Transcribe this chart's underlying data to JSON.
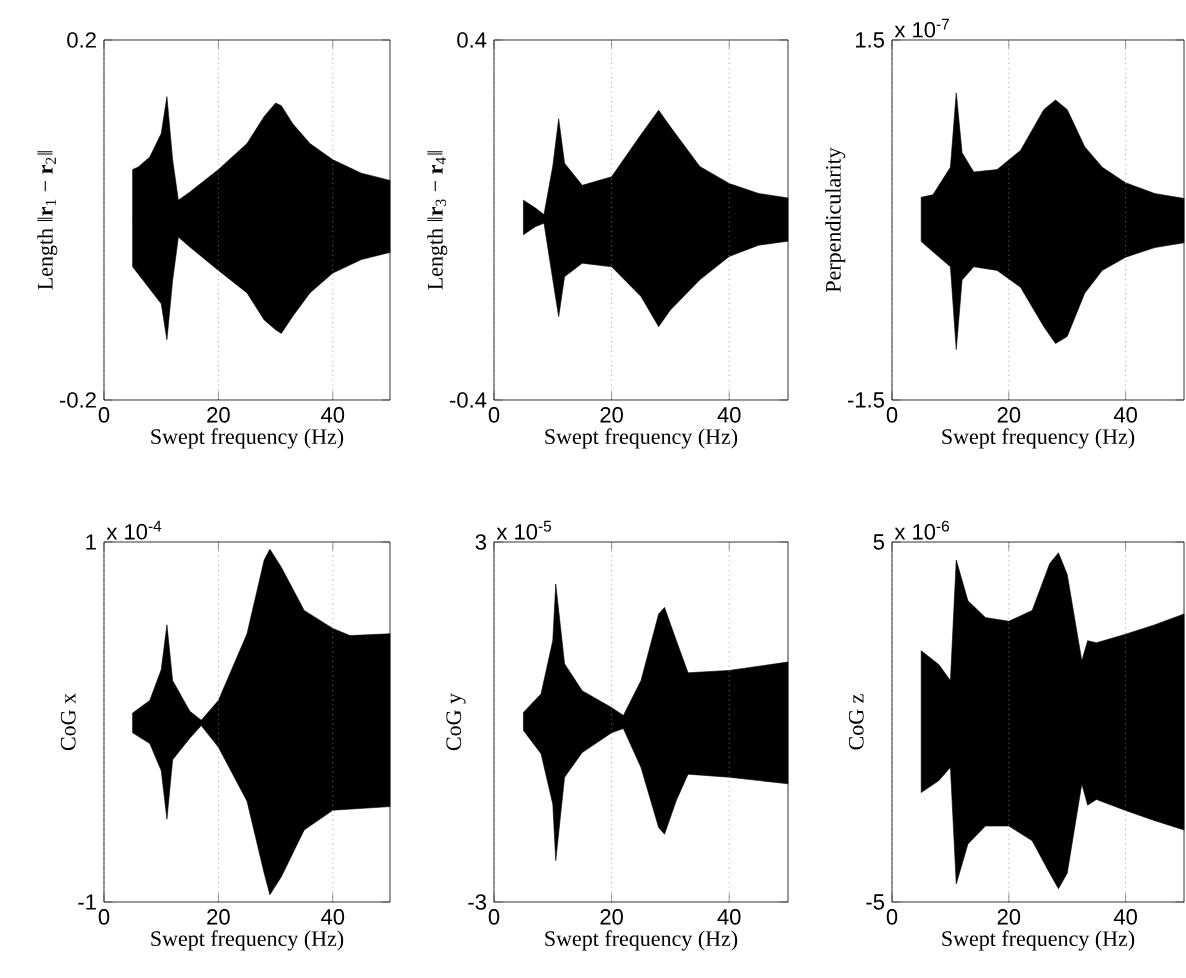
{
  "chart_data": [
    {
      "type": "area",
      "xlim": [
        0,
        50
      ],
      "xticks": [
        0,
        20,
        40
      ],
      "ylim": [
        -0.2,
        0.2
      ],
      "yticks": [
        -0.2,
        0.2
      ],
      "grid": "x",
      "xlabel": "Swept frequency (Hz)",
      "ylabel": "Length ‖**r**$_{1}$ − **r**$_{2}$‖",
      "series": [
        {
          "color": "#000000",
          "x": [
            5,
            6,
            8,
            10,
            11,
            12,
            13,
            15,
            20,
            25,
            28,
            30,
            31,
            33,
            36,
            40,
            45,
            50
          ],
          "values": [
            0.056,
            0.059,
            0.07,
            0.096,
            0.137,
            0.067,
            0.022,
            0.031,
            0.056,
            0.085,
            0.115,
            0.13,
            0.127,
            0.107,
            0.085,
            0.067,
            0.052,
            0.044
          ]
        },
        {
          "color": "#000000",
          "x": [
            5,
            10,
            11,
            12,
            13,
            15,
            20,
            25,
            28,
            30,
            31,
            33,
            36,
            40,
            45,
            50
          ],
          "values": [
            -0.052,
            -0.093,
            -0.133,
            -0.067,
            -0.019,
            -0.03,
            -0.056,
            -0.081,
            -0.111,
            -0.122,
            -0.126,
            -0.107,
            -0.081,
            -0.059,
            -0.044,
            -0.036
          ]
        }
      ]
    },
    {
      "type": "area",
      "xlim": [
        0,
        50
      ],
      "xticks": [
        0,
        20,
        40
      ],
      "ylim": [
        -0.4,
        0.4
      ],
      "yticks": [
        -0.4,
        0.4
      ],
      "grid": "x",
      "xlabel": "Swept frequency (Hz)",
      "ylabel": "Length ‖**r**$_{3}$ − **r**$_{4}$‖",
      "series": [
        {
          "color": "#000000",
          "x": [
            5,
            7,
            8.5,
            10,
            11,
            12,
            15,
            20,
            25,
            28,
            30,
            35,
            40,
            45,
            50
          ],
          "values": [
            0.044,
            0.027,
            0.012,
            0.12,
            0.225,
            0.126,
            0.077,
            0.096,
            0.19,
            0.244,
            0.207,
            0.119,
            0.081,
            0.059,
            0.049
          ]
        },
        {
          "color": "#000000",
          "x": [
            5,
            7,
            8.5,
            10,
            11,
            12,
            15,
            20,
            25,
            28,
            30,
            35,
            40,
            45,
            50
          ],
          "values": [
            -0.033,
            -0.015,
            -0.007,
            -0.133,
            -0.215,
            -0.126,
            -0.096,
            -0.104,
            -0.17,
            -0.237,
            -0.2,
            -0.133,
            -0.081,
            -0.056,
            -0.047
          ]
        }
      ]
    },
    {
      "type": "area",
      "xlim": [
        0,
        50
      ],
      "xticks": [
        0,
        20,
        40
      ],
      "ylim": [
        -1.5,
        1.5
      ],
      "yticks": [
        -1.5,
        1.5
      ],
      "grid": "x",
      "xlabel": "Swept frequency (Hz)",
      "ylabel": "Perpendicularity",
      "annotations": [
        "x 10$^{-7}$"
      ],
      "series": [
        {
          "color": "#000000",
          "x": [
            5,
            7,
            10,
            11,
            12,
            14,
            18,
            22,
            26,
            28,
            30,
            33,
            36,
            40,
            45,
            50
          ],
          "values": [
            0.19,
            0.21,
            0.44,
            1.06,
            0.56,
            0.4,
            0.42,
            0.58,
            0.92,
            1.0,
            0.92,
            0.61,
            0.44,
            0.31,
            0.22,
            0.18
          ]
        },
        {
          "color": "#000000",
          "x": [
            5,
            10,
            11,
            12,
            14,
            18,
            22,
            26,
            28,
            30,
            33,
            36,
            40,
            45,
            50
          ],
          "values": [
            -0.18,
            -0.39,
            -1.08,
            -0.5,
            -0.39,
            -0.42,
            -0.56,
            -0.89,
            -1.03,
            -0.97,
            -0.61,
            -0.42,
            -0.31,
            -0.23,
            -0.19
          ]
        }
      ]
    },
    {
      "type": "area",
      "xlim": [
        0,
        50
      ],
      "xticks": [
        0,
        20,
        40
      ],
      "ylim": [
        -1,
        1
      ],
      "yticks": [
        -1,
        1
      ],
      "grid": "x",
      "xlabel": "Swept frequency (Hz)",
      "ylabel": "CoG x",
      "annotations": [
        "x 10$^{-4}$"
      ],
      "series": [
        {
          "color": "#000000",
          "x": [
            5,
            8,
            10,
            11,
            12,
            15,
            17,
            20,
            25,
            28,
            29,
            31,
            35,
            40,
            43,
            50
          ],
          "values": [
            0.05,
            0.12,
            0.29,
            0.54,
            0.23,
            0.06,
            0.01,
            0.12,
            0.49,
            0.9,
            0.96,
            0.86,
            0.62,
            0.52,
            0.48,
            0.49
          ]
        },
        {
          "color": "#000000",
          "x": [
            5,
            8,
            10,
            11,
            12,
            15,
            17,
            20,
            25,
            28,
            29,
            31,
            35,
            40,
            50
          ],
          "values": [
            -0.06,
            -0.12,
            -0.27,
            -0.54,
            -0.21,
            -0.09,
            -0.02,
            -0.14,
            -0.44,
            -0.84,
            -0.96,
            -0.86,
            -0.6,
            -0.49,
            -0.47
          ]
        }
      ]
    },
    {
      "type": "area",
      "xlim": [
        0,
        50
      ],
      "xticks": [
        0,
        20,
        40
      ],
      "ylim": [
        -3,
        3
      ],
      "yticks": [
        -3,
        3
      ],
      "grid": "x",
      "xlabel": "Swept frequency (Hz)",
      "ylabel": "CoG y",
      "annotations": [
        "x 10$^{-5}$"
      ],
      "series": [
        {
          "color": "#000000",
          "x": [
            5,
            8,
            10,
            10.5,
            12,
            15,
            20,
            22,
            25,
            28,
            29,
            31,
            33,
            40,
            50
          ],
          "values": [
            0.16,
            0.47,
            1.36,
            2.3,
            0.97,
            0.52,
            0.24,
            0.11,
            0.69,
            1.8,
            1.91,
            1.36,
            0.82,
            0.86,
            1.0
          ]
        },
        {
          "color": "#000000",
          "x": [
            5,
            8,
            10,
            10.5,
            12,
            15,
            20,
            22,
            25,
            28,
            29,
            31,
            33,
            40,
            50
          ],
          "values": [
            -0.14,
            -0.53,
            -1.37,
            -2.31,
            -0.92,
            -0.51,
            -0.18,
            -0.11,
            -0.76,
            -1.76,
            -1.87,
            -1.31,
            -0.87,
            -0.92,
            -1.03
          ]
        }
      ]
    },
    {
      "type": "area",
      "xlim": [
        0,
        50
      ],
      "xticks": [
        0,
        20,
        40
      ],
      "ylim": [
        -5,
        5
      ],
      "yticks": [
        -5,
        5
      ],
      "grid": "x",
      "xlabel": "Swept frequency (Hz)",
      "ylabel": "CoG z",
      "annotations": [
        "x 10$^{-6}$"
      ],
      "series": [
        {
          "color": "#000000",
          "x": [
            5,
            8,
            10,
            11,
            13,
            16,
            20,
            24,
            27,
            28.5,
            30,
            32.5,
            33.5,
            35,
            40,
            45,
            50
          ],
          "values": [
            1.98,
            1.6,
            1.15,
            4.5,
            3.37,
            2.9,
            2.8,
            3.1,
            4.4,
            4.7,
            4.1,
            1.7,
            2.26,
            2.2,
            2.44,
            2.7,
            3.0
          ]
        },
        {
          "color": "#000000",
          "x": [
            5,
            8,
            10,
            11,
            13,
            16,
            20,
            24,
            27,
            28.5,
            30,
            32.5,
            33.5,
            35,
            40,
            45,
            50
          ],
          "values": [
            -1.96,
            -1.63,
            -1.26,
            -4.5,
            -3.39,
            -2.89,
            -2.89,
            -3.3,
            -4.2,
            -4.63,
            -4.2,
            -1.72,
            -2.31,
            -2.15,
            -2.46,
            -2.74,
            -3.0
          ]
        }
      ]
    }
  ]
}
